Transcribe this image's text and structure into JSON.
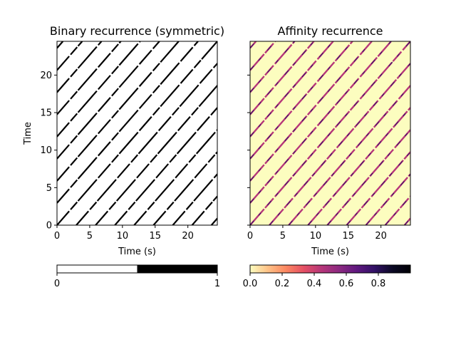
{
  "chart_data": [
    {
      "type": "heatmap",
      "title": "Binary recurrence (symmetric)",
      "xlabel": "Time (s)",
      "ylabel": "Time",
      "xlim": [
        0,
        24.5
      ],
      "ylim": [
        0,
        24.5
      ],
      "xticks": [
        0,
        5,
        10,
        15,
        20
      ],
      "yticks": [
        0,
        5,
        10,
        15,
        20
      ],
      "diagonal_period_s": 2.95,
      "colormap": [
        "#ffffff",
        "#000000"
      ],
      "colorbar": {
        "range": [
          0,
          1
        ],
        "ticks": [
          "0",
          "1"
        ]
      }
    },
    {
      "type": "heatmap",
      "title": "Affinity recurrence",
      "xlabel": "Time (s)",
      "ylabel": "",
      "xlim": [
        0,
        24.5
      ],
      "ylim": [
        0,
        24.5
      ],
      "xticks": [
        0,
        5,
        10,
        15,
        20
      ],
      "yticks": [
        0,
        5,
        10,
        15,
        20
      ],
      "show_ytick_labels": false,
      "diagonal_period_s": 2.95,
      "background_color": "#fcfdbf",
      "colormap": [
        "#fcfdbf",
        "#fec287",
        "#fb8861",
        "#e55064",
        "#b63679",
        "#8c2981",
        "#5f187f",
        "#311165",
        "#0b0924",
        "#000004"
      ],
      "colorbar": {
        "range": [
          0,
          1
        ],
        "ticks": [
          "0.0",
          "0.2",
          "0.4",
          "0.6",
          "0.8"
        ]
      }
    }
  ]
}
